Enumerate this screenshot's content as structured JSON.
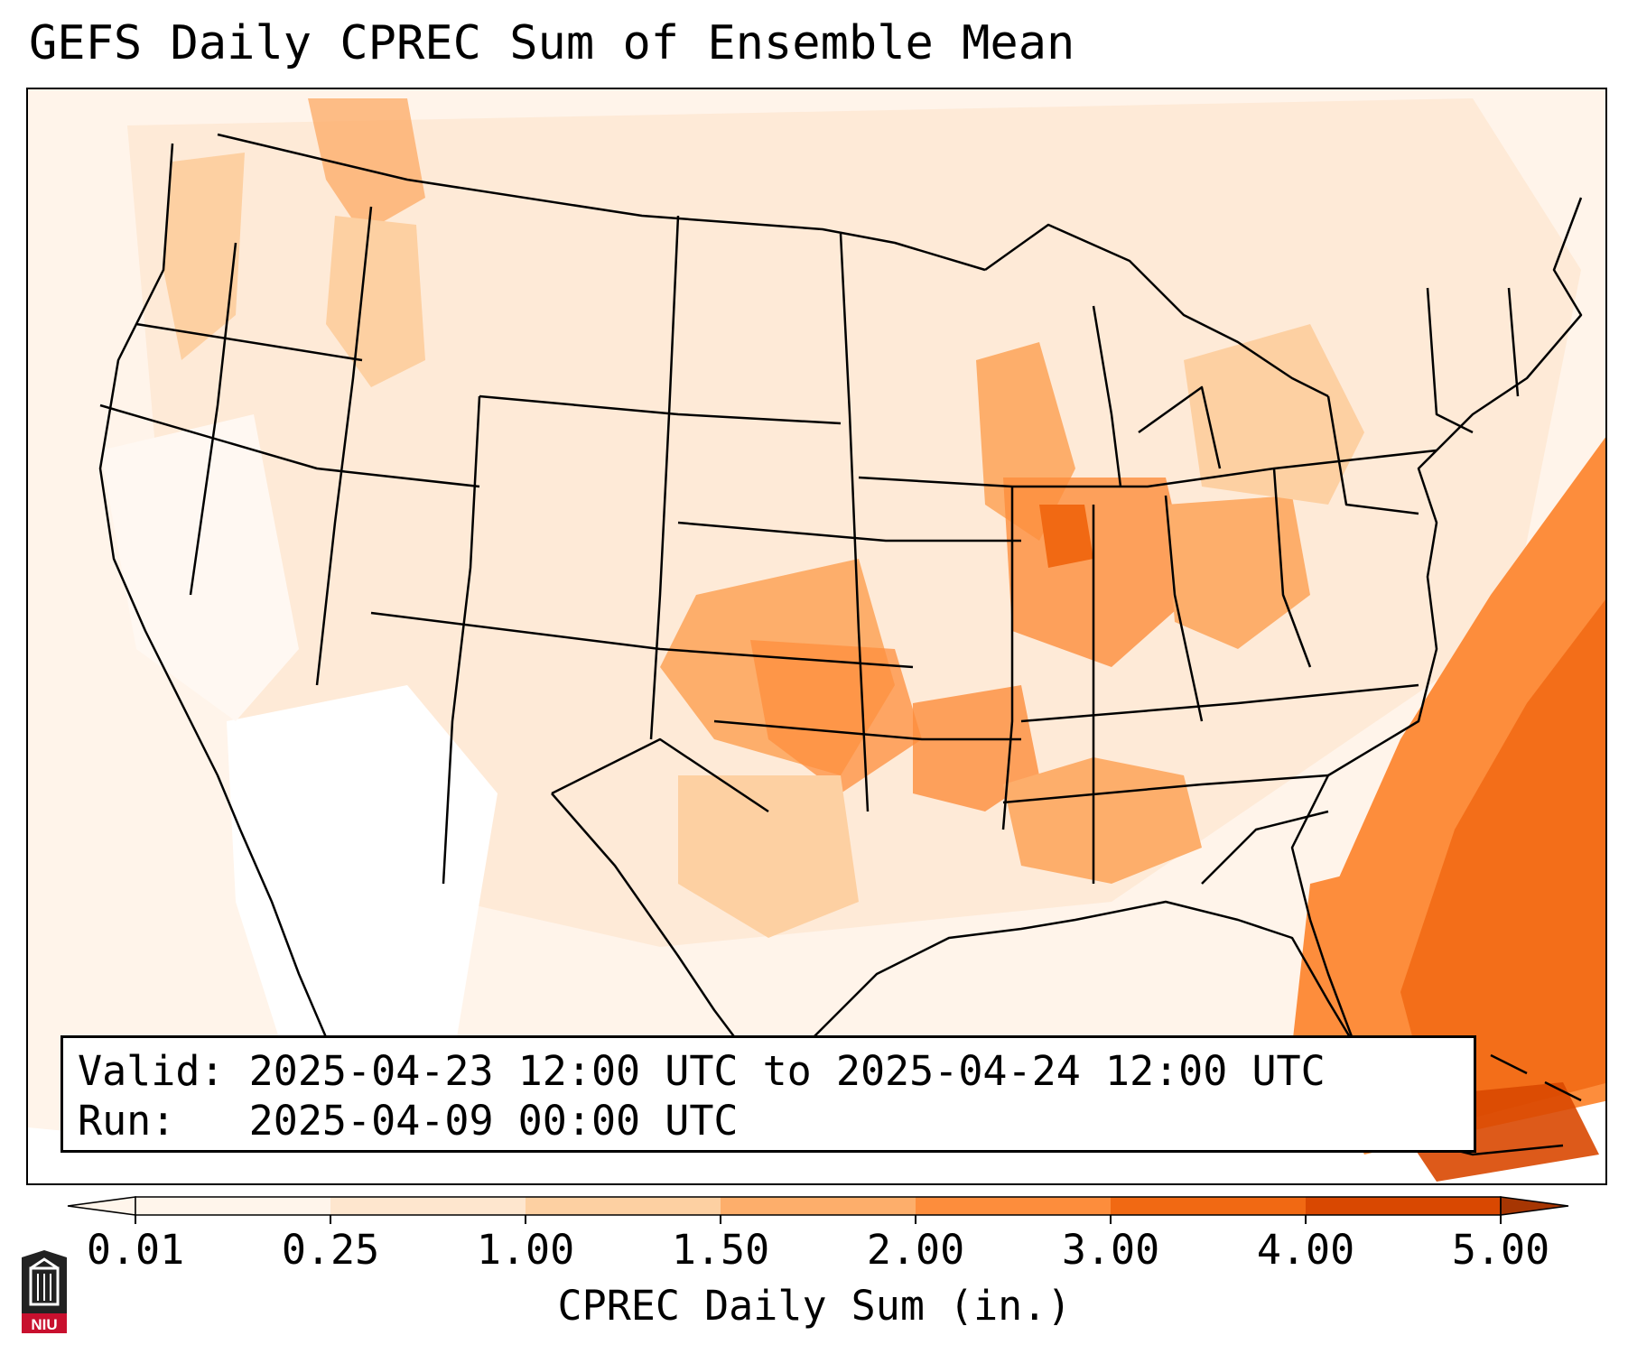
{
  "title": "GEFS Daily CPREC Sum of Ensemble Mean",
  "info": {
    "valid_label": "Valid:",
    "valid_value": "2025-04-23 12:00 UTC to 2025-04-24 12:00 UTC",
    "run_label": "Run:",
    "run_value": "2025-04-09 00:00 UTC"
  },
  "colorbar": {
    "label": "CPREC Daily Sum (in.)",
    "ticks": [
      "0.01",
      "0.25",
      "1.00",
      "1.50",
      "2.00",
      "3.00",
      "4.00",
      "5.00"
    ],
    "colors": [
      "#fff5eb",
      "#fee6ce",
      "#fdd0a2",
      "#fdae6b",
      "#fd8d3c",
      "#f16913",
      "#d94801",
      "#a63603"
    ],
    "extend": "both"
  },
  "map": {
    "projection": "Lambert conformal, CONUS",
    "field": "CPREC daily sum",
    "color_low": "#fff5eb",
    "color_high": "#d94801",
    "heaviest_regions": [
      "western Atlantic off the southeast coast",
      "Florida",
      "Ozarks / Arkansas",
      "Illinois / Indiana",
      "Oklahoma / Kansas"
    ]
  },
  "logo": {
    "name": "niu-logo-icon",
    "text": "NIU",
    "color": "#c8102e"
  }
}
